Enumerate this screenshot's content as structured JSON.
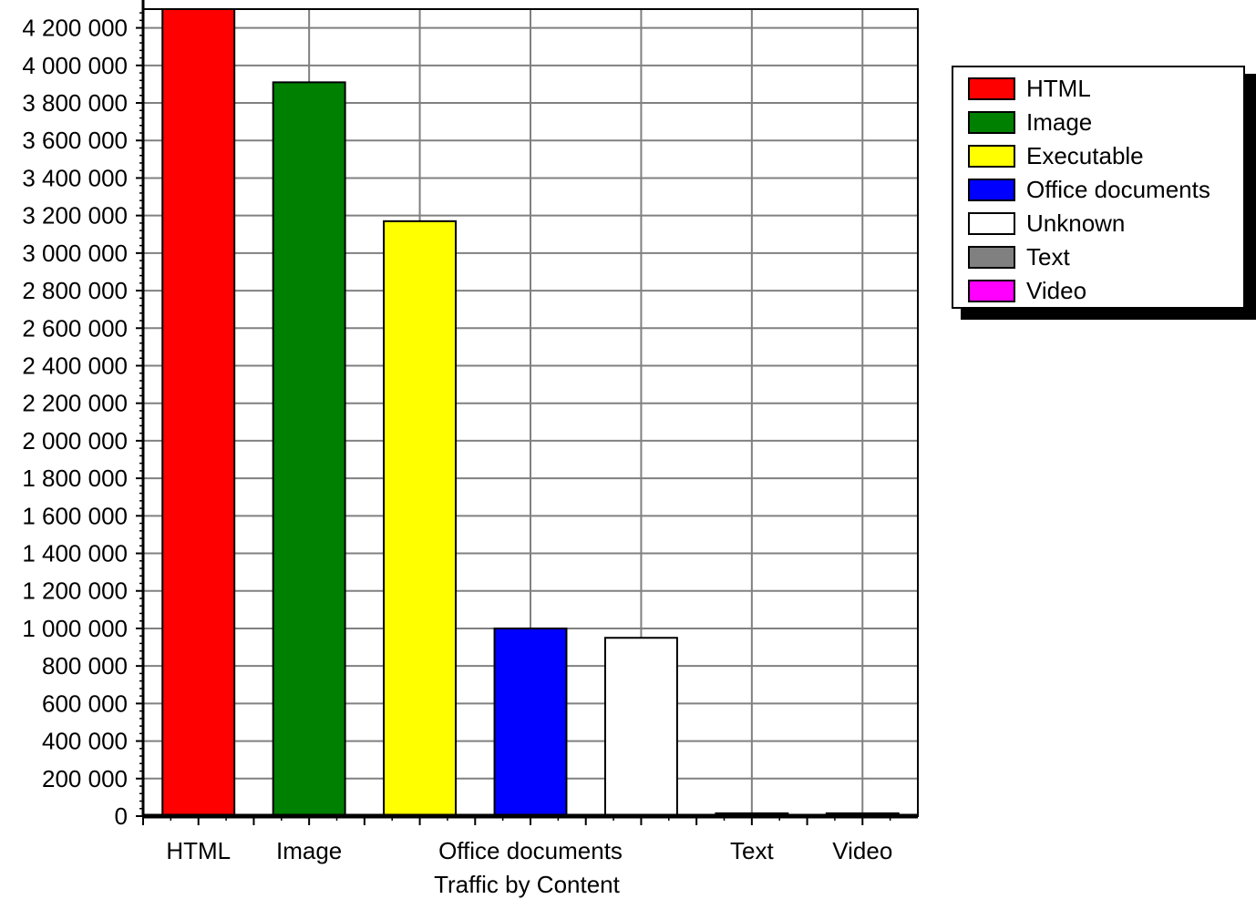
{
  "chart_data": {
    "type": "bar",
    "xlabel": "Traffic by Content",
    "ylabel": "",
    "ylim": [
      0,
      4300000
    ],
    "grid": true,
    "legend_position": "top-right",
    "yticks": [
      "0",
      "200 000",
      "400 000",
      "600 000",
      "800 000",
      "1 000 000",
      "1 200 000",
      "1 400 000",
      "1 600 000",
      "1 800 000",
      "2 000 000",
      "2 200 000",
      "2 400 000",
      "2 600 000",
      "2 800 000",
      "3 000 000",
      "3 200 000",
      "3 400 000",
      "3 600 000",
      "3 800 000",
      "4 000 000",
      "4 200 000"
    ],
    "categories": [
      "HTML",
      "Image",
      "Executable",
      "Office documents",
      "Unknown",
      "Text",
      "Video"
    ],
    "xtick_labels": [
      "HTML",
      "Image",
      "",
      "Office documents",
      "",
      "Text",
      "Video"
    ],
    "values": [
      4300000,
      3910000,
      3170000,
      1000000,
      950000,
      15000,
      15000
    ],
    "colors": [
      "#ff0000",
      "#008000",
      "#ffff00",
      "#0000ff",
      "#ffffff",
      "#808080",
      "#ff00ff"
    ]
  },
  "legend": {
    "items": [
      {
        "label": "HTML",
        "color": "#ff0000"
      },
      {
        "label": "Image",
        "color": "#008000"
      },
      {
        "label": "Executable",
        "color": "#ffff00"
      },
      {
        "label": "Office documents",
        "color": "#0000ff"
      },
      {
        "label": "Unknown",
        "color": "#ffffff"
      },
      {
        "label": "Text",
        "color": "#808080"
      },
      {
        "label": "Video",
        "color": "#ff00ff"
      }
    ]
  }
}
